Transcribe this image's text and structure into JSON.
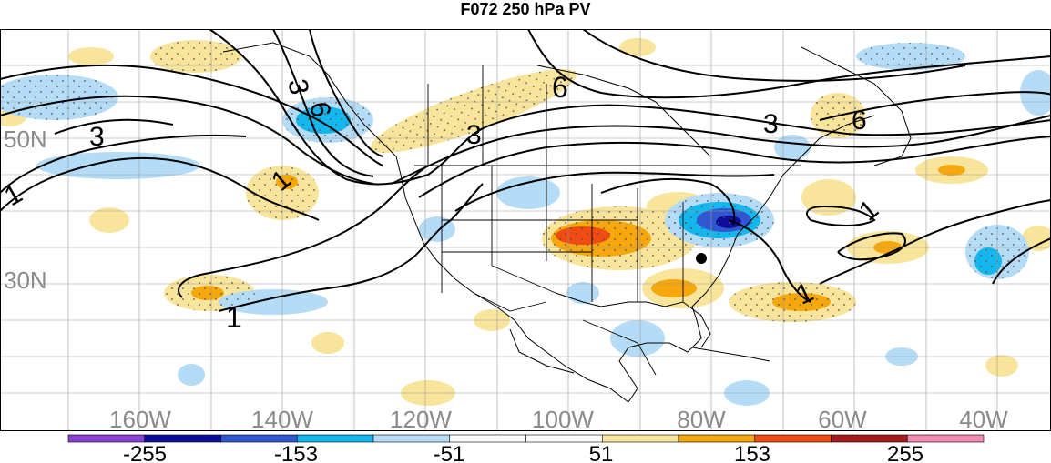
{
  "title": "F072 250 hPa PV",
  "lat_labels": [
    "50N",
    "30N"
  ],
  "lon_labels": [
    "160W",
    "140W",
    "120W",
    "100W",
    "80W",
    "60W",
    "40W"
  ],
  "contour_labels": [
    "3",
    "3",
    "6",
    "3",
    "6",
    "3",
    "6",
    "1",
    "1",
    "1",
    "1",
    "1"
  ],
  "colorbar": {
    "labels": [
      "-255",
      "-153",
      "-51",
      "51",
      "153",
      "255"
    ],
    "colors": [
      "#8c3fd6",
      "#0e0e9e",
      "#2f57d3",
      "#14b6ee",
      "#b5dcf6",
      "#ffffff",
      "#ffffff",
      "#f8e59b",
      "#f6a70c",
      "#f04b12",
      "#aa1b1b",
      "#f58ab3"
    ]
  },
  "colors": {
    "positive_light": "#f8e59b",
    "positive_med": "#f6a70c",
    "positive_strong": "#f04b12",
    "negative_light": "#b5dcf6",
    "negative_med": "#14b6ee",
    "negative_strong": "#2f57d3",
    "negative_extreme": "#0e0e9e"
  }
}
